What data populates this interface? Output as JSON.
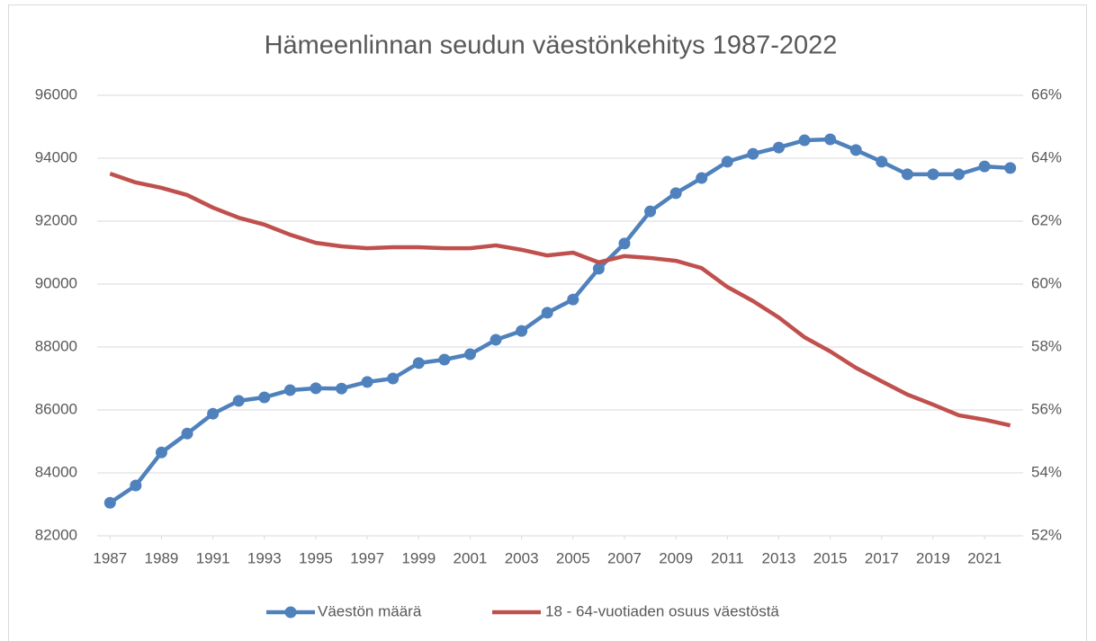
{
  "chart_data": {
    "type": "line",
    "title": "Hämeenlinnan seudun väestönkehitys 1987-2022",
    "x": [
      1987,
      1988,
      1989,
      1990,
      1991,
      1992,
      1993,
      1994,
      1995,
      1996,
      1997,
      1998,
      1999,
      2000,
      2001,
      2002,
      2003,
      2004,
      2005,
      2006,
      2007,
      2008,
      2009,
      2010,
      2011,
      2012,
      2013,
      2014,
      2015,
      2016,
      2017,
      2018,
      2019,
      2020,
      2021,
      2022
    ],
    "xlim": [
      1986.5,
      2022.5
    ],
    "xticks": [
      1987,
      1989,
      1991,
      1993,
      1995,
      1997,
      1999,
      2001,
      2003,
      2005,
      2007,
      2009,
      2011,
      2013,
      2015,
      2017,
      2019,
      2021
    ],
    "ylim": [
      82000,
      96000
    ],
    "yticks": [
      82000,
      84000,
      86000,
      88000,
      90000,
      92000,
      94000,
      96000
    ],
    "y2lim": [
      52,
      66
    ],
    "y2ticks": [
      {
        "value": 52,
        "label": "52%"
      },
      {
        "value": 54,
        "label": "54%"
      },
      {
        "value": 56,
        "label": "56%"
      },
      {
        "value": 58,
        "label": "58%"
      },
      {
        "value": 60,
        "label": "60%"
      },
      {
        "value": 62,
        "label": "62%"
      },
      {
        "value": 64,
        "label": "64%"
      },
      {
        "value": 66,
        "label": "66%"
      }
    ],
    "grid": true,
    "legend": "bottom",
    "series": [
      {
        "name": "Väestön määrä",
        "color": "#4f81bd",
        "markers": true,
        "values": [
          83050,
          83600,
          84650,
          85250,
          85880,
          86290,
          86400,
          86630,
          86690,
          86680,
          86890,
          87000,
          87490,
          87600,
          87770,
          88230,
          88510,
          89090,
          89510,
          90490,
          91290,
          92310,
          92890,
          93370,
          93890,
          94140,
          94340,
          94570,
          94600,
          94260,
          93890,
          93490,
          93490,
          93490,
          93740,
          93690
        ]
      },
      {
        "name": "18 - 64-vuotiaden osuus väestöstä",
        "color": "#c0504d",
        "axis": "y2",
        "markers": false,
        "values": [
          63.51,
          63.23,
          63.06,
          62.83,
          62.43,
          62.11,
          61.89,
          61.57,
          61.31,
          61.2,
          61.14,
          61.17,
          61.17,
          61.14,
          61.14,
          61.23,
          61.09,
          60.91,
          61.0,
          60.69,
          60.89,
          60.83,
          60.74,
          60.51,
          59.91,
          59.46,
          58.94,
          58.31,
          57.86,
          57.34,
          56.91,
          56.49,
          56.17,
          55.83,
          55.69,
          55.51
        ]
      }
    ]
  }
}
